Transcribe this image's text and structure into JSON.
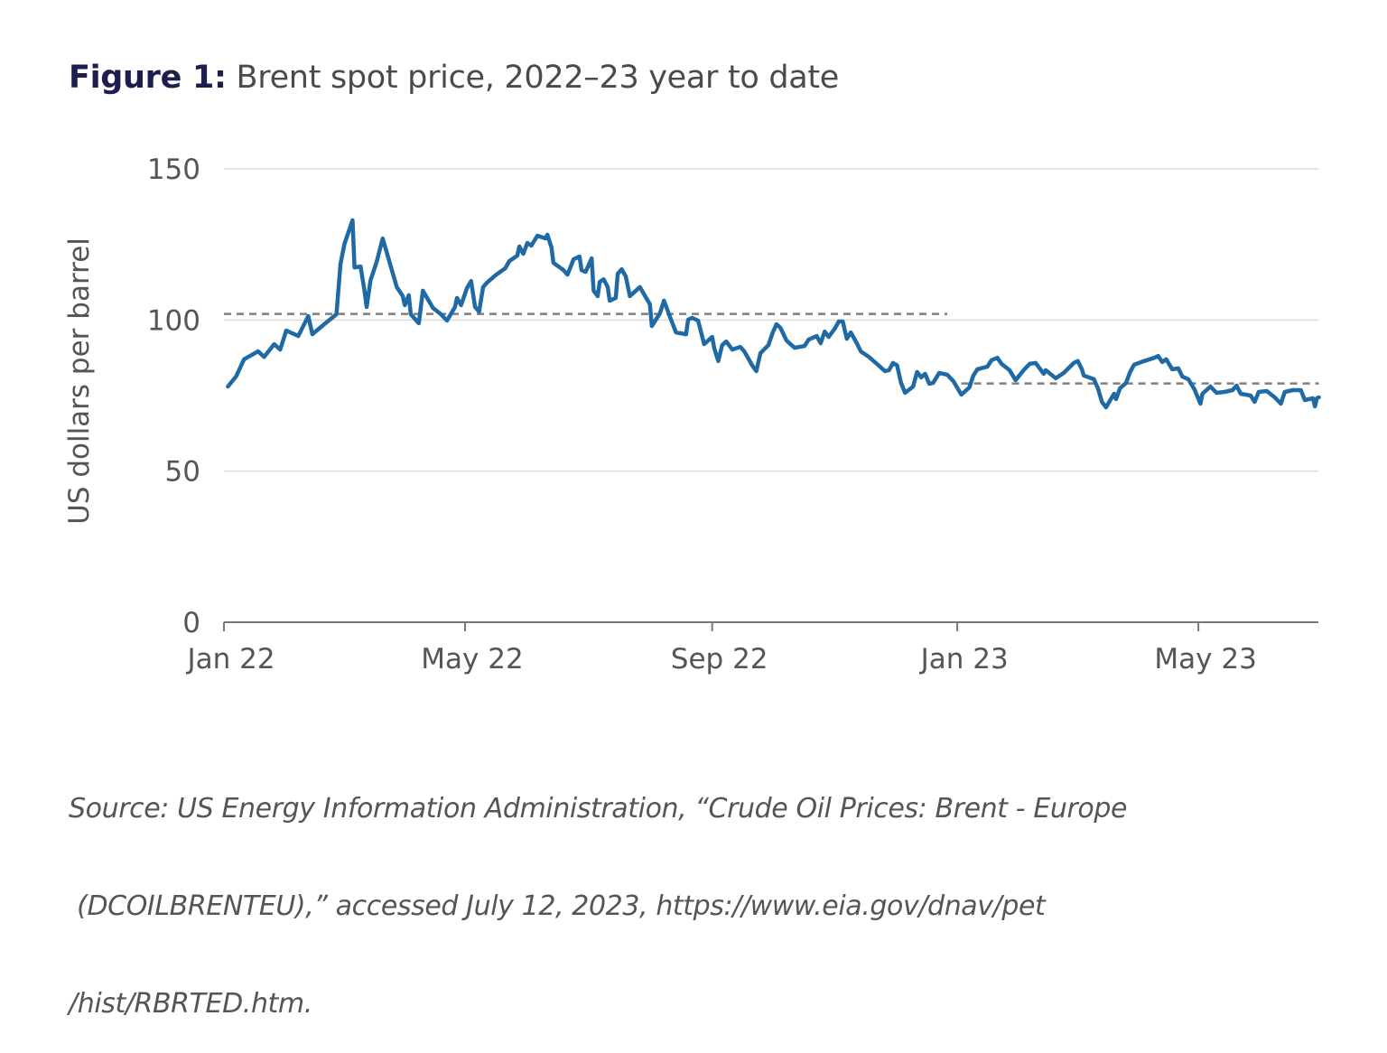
{
  "title": {
    "figure_label": "Figure 1:",
    "text": "Brent spot price, 2022–23 year to date"
  },
  "source": {
    "lines": [
      "Source: US Energy Information Administration, “Crude Oil Prices: Brent - Europe",
      " (DCOILBRENTEU),” accessed July 12, 2023, https://www.eia.gov/dnav/pet",
      "/hist/RBRTED.htm."
    ]
  },
  "chart_data": {
    "type": "line",
    "title": "Brent spot price, 2022–23 year to date",
    "xlabel": "",
    "ylabel": "US dollars per barrel",
    "ylim": [
      0,
      150
    ],
    "xlim": [
      "2022-01-01",
      "2023-07-01"
    ],
    "y_ticks": [
      0,
      50,
      100,
      150
    ],
    "x_ticks": [
      {
        "date": "2022-01-01",
        "label": "Jan 22"
      },
      {
        "date": "2022-05-01",
        "label": "May 22"
      },
      {
        "date": "2022-09-01",
        "label": "Sep 22"
      },
      {
        "date": "2023-01-01",
        "label": "Jan 23"
      },
      {
        "date": "2023-05-01",
        "label": "May 23"
      }
    ],
    "grid": "horizontal",
    "colors": {
      "series": "#1f6aa5",
      "average": "#7f7f7f",
      "grid": "#dcdcdc",
      "axis": "#777777"
    },
    "reference_lines": [
      {
        "style": "dashed",
        "value": 102,
        "from": "2022-01-01",
        "to": "2022-12-27"
      },
      {
        "style": "dashed",
        "value": 79,
        "from": "2023-01-03",
        "to": "2023-06-30"
      }
    ],
    "series": [
      {
        "x": [
          "2022-01-03",
          "2022-01-07",
          "2022-01-11",
          "2022-01-18",
          "2022-01-21",
          "2022-01-26",
          "2022-01-29",
          "2022-02-01",
          "2022-02-07",
          "2022-02-12",
          "2022-02-14",
          "2022-02-21",
          "2022-02-26",
          "2022-02-28",
          "2022-03-02",
          "2022-03-06",
          "2022-03-07",
          "2022-03-10",
          "2022-03-12",
          "2022-03-13",
          "2022-03-15",
          "2022-03-18",
          "2022-03-21",
          "2022-03-24",
          "2022-03-28",
          "2022-03-31",
          "2022-04-01",
          "2022-04-03",
          "2022-04-04",
          "2022-04-08",
          "2022-04-10",
          "2022-04-15",
          "2022-04-19",
          "2022-04-22",
          "2022-04-26",
          "2022-04-27",
          "2022-04-29",
          "2022-05-02",
          "2022-05-04",
          "2022-05-06",
          "2022-05-08",
          "2022-05-10",
          "2022-05-12",
          "2022-05-16",
          "2022-05-21",
          "2022-05-23",
          "2022-05-27",
          "2022-05-28",
          "2022-05-30",
          "2022-06-01",
          "2022-06-03",
          "2022-06-06",
          "2022-06-10",
          "2022-06-11",
          "2022-06-13",
          "2022-06-14",
          "2022-06-19",
          "2022-06-21",
          "2022-06-24",
          "2022-06-27",
          "2022-06-28",
          "2022-06-30",
          "2022-07-03",
          "2022-07-04",
          "2022-07-06",
          "2022-07-07",
          "2022-07-09",
          "2022-07-11",
          "2022-07-12",
          "2022-07-15",
          "2022-07-16",
          "2022-07-18",
          "2022-07-20",
          "2022-07-22",
          "2022-07-27",
          "2022-08-01",
          "2022-08-02",
          "2022-08-06",
          "2022-08-08",
          "2022-08-11",
          "2022-08-14",
          "2022-08-19",
          "2022-08-20",
          "2022-08-22",
          "2022-08-25",
          "2022-08-28",
          "2022-09-01",
          "2022-09-02",
          "2022-09-04",
          "2022-09-06",
          "2022-09-08",
          "2022-09-11",
          "2022-09-15",
          "2022-09-17",
          "2022-09-21",
          "2022-09-23",
          "2022-09-25",
          "2022-09-29",
          "2022-10-01",
          "2022-10-03",
          "2022-10-05",
          "2022-10-08",
          "2022-10-12",
          "2022-10-17",
          "2022-10-19",
          "2022-10-23",
          "2022-10-25",
          "2022-10-27",
          "2022-10-29",
          "2022-11-01",
          "2022-11-03",
          "2022-11-05",
          "2022-11-07",
          "2022-11-09",
          "2022-11-12",
          "2022-11-14",
          "2022-11-18",
          "2022-11-22",
          "2022-11-26",
          "2022-11-28",
          "2022-11-30",
          "2022-12-02",
          "2022-12-04",
          "2022-12-06",
          "2022-12-10",
          "2022-12-12",
          "2022-12-14",
          "2022-12-16",
          "2022-12-18",
          "2022-12-20",
          "2022-12-23",
          "2022-12-27",
          "2022-12-30",
          "2023-01-03",
          "2023-01-07",
          "2023-01-09",
          "2023-01-11",
          "2023-01-16",
          "2023-01-18",
          "2023-01-21",
          "2023-01-23",
          "2023-01-27",
          "2023-01-30",
          "2023-02-03",
          "2023-02-06",
          "2023-02-09",
          "2023-02-13",
          "2023-02-14",
          "2023-02-19",
          "2023-02-23",
          "2023-02-28",
          "2023-03-02",
          "2023-03-04",
          "2023-03-05",
          "2023-03-10",
          "2023-03-12",
          "2023-03-14",
          "2023-03-16",
          "2023-03-20",
          "2023-03-21",
          "2023-03-23",
          "2023-03-26",
          "2023-03-28",
          "2023-03-30",
          "2023-04-04",
          "2023-04-09",
          "2023-04-11",
          "2023-04-13",
          "2023-04-15",
          "2023-04-18",
          "2023-04-21",
          "2023-04-23",
          "2023-04-26",
          "2023-04-29",
          "2023-05-02",
          "2023-05-03",
          "2023-05-07",
          "2023-05-10",
          "2023-05-14",
          "2023-05-18",
          "2023-05-20",
          "2023-05-22",
          "2023-05-27",
          "2023-05-29",
          "2023-05-31",
          "2023-06-04",
          "2023-06-08",
          "2023-06-11",
          "2023-06-13",
          "2023-06-17",
          "2023-06-21",
          "2023-06-23",
          "2023-06-27",
          "2023-06-28",
          "2023-06-29",
          "2023-06-30"
        ],
        "y": [
          78.0,
          81.3,
          87.0,
          89.6,
          87.8,
          92.0,
          90.2,
          96.5,
          94.7,
          101.3,
          95.3,
          99.2,
          101.9,
          118.6,
          125.2,
          133.0,
          117.4,
          117.7,
          109.4,
          104.3,
          113.2,
          119.2,
          127.0,
          120.1,
          110.9,
          107.9,
          104.9,
          108.2,
          101.9,
          98.9,
          109.7,
          104.0,
          101.9,
          99.8,
          104.3,
          107.3,
          104.9,
          110.6,
          112.9,
          104.3,
          102.8,
          110.9,
          112.4,
          114.7,
          117.1,
          119.5,
          121.3,
          124.3,
          121.9,
          125.5,
          124.6,
          127.9,
          127.0,
          128.2,
          124.0,
          118.9,
          116.5,
          115.0,
          120.1,
          121.0,
          116.5,
          115.9,
          120.4,
          109.7,
          107.9,
          112.6,
          113.5,
          110.9,
          106.4,
          107.3,
          115.3,
          116.8,
          114.4,
          107.9,
          110.9,
          105.2,
          98.0,
          102.2,
          106.4,
          101.0,
          95.9,
          95.3,
          100.1,
          100.7,
          99.8,
          92.0,
          94.4,
          90.8,
          86.4,
          91.7,
          92.9,
          90.2,
          91.1,
          89.6,
          84.9,
          83.1,
          89.0,
          91.7,
          95.6,
          98.6,
          97.4,
          93.2,
          90.8,
          91.4,
          93.5,
          94.7,
          92.3,
          96.2,
          94.4,
          97.1,
          99.5,
          99.5,
          93.8,
          95.9,
          92.3,
          89.6,
          87.8,
          85.5,
          83.1,
          83.4,
          85.8,
          85.0,
          79.2,
          75.9,
          78.0,
          82.8,
          81.0,
          82.2,
          78.9,
          79.2,
          82.5,
          81.9,
          79.8,
          75.3,
          77.7,
          81.6,
          83.7,
          84.6,
          86.7,
          87.5,
          85.5,
          83.4,
          80.1,
          83.4,
          85.5,
          85.8,
          82.2,
          83.4,
          80.7,
          82.5,
          85.8,
          86.4,
          83.7,
          81.6,
          80.4,
          77.4,
          72.9,
          71.1,
          75.6,
          73.8,
          77.4,
          79.2,
          82.8,
          85.2,
          86.4,
          87.5,
          88.1,
          86.1,
          87.0,
          83.7,
          84.0,
          81.3,
          80.4,
          77.1,
          72.3,
          75.6,
          78.0,
          75.9,
          76.2,
          76.8,
          78.3,
          75.6,
          75.0,
          72.9,
          76.2,
          76.5,
          74.4,
          72.3,
          76.2,
          76.8,
          76.8,
          73.5,
          74.1,
          71.4,
          74.1,
          74.4
        ]
      }
    ]
  }
}
